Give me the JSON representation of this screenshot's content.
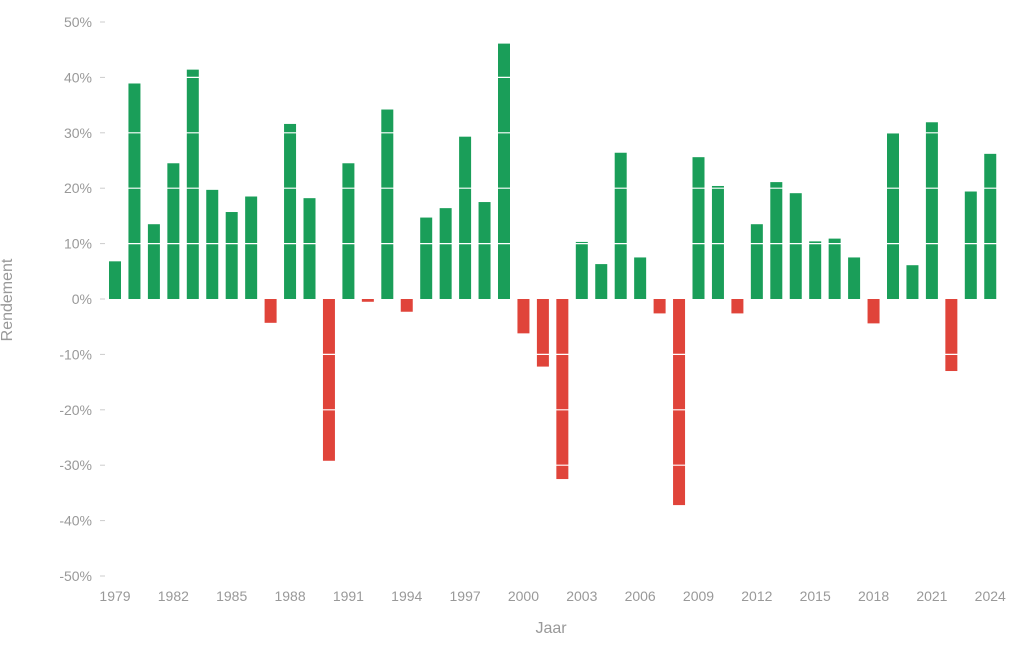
{
  "chart_data": {
    "type": "bar",
    "title": "",
    "xlabel": "Jaar",
    "ylabel": "Rendement",
    "ylim": [
      -50,
      50
    ],
    "yticks": [
      "50%",
      "40%",
      "30%",
      "20%",
      "10%",
      "0%",
      "-10%",
      "-20%",
      "-30%",
      "-40%",
      "-50%"
    ],
    "ytick_values": [
      50,
      40,
      30,
      20,
      10,
      0,
      -10,
      -20,
      -30,
      -40,
      -50
    ],
    "xtick_labels": [
      "1979",
      "1982",
      "1985",
      "1988",
      "1991",
      "1994",
      "1997",
      "2000",
      "2003",
      "2006",
      "2009",
      "2012",
      "2015",
      "2018",
      "2021",
      "2024"
    ],
    "grid": "horizontal",
    "colors": {
      "positive": "#1a9e59",
      "negative": "#e0443a",
      "gridline": "#ffffff",
      "text": "#999999"
    },
    "categories": [
      "1979",
      "1980",
      "1981",
      "1982",
      "1983",
      "1984",
      "1985",
      "1986",
      "1987",
      "1988",
      "1989",
      "1990",
      "1991",
      "1992",
      "1993",
      "1994",
      "1995",
      "1996",
      "1997",
      "1998",
      "1999",
      "2000",
      "2001",
      "2002",
      "2003",
      "2004",
      "2005",
      "2006",
      "2007",
      "2008",
      "2009",
      "2010",
      "2011",
      "2012",
      "2013",
      "2014",
      "2015",
      "2016",
      "2017",
      "2018",
      "2019",
      "2020",
      "2021",
      "2022",
      "2023",
      "2024"
    ],
    "values": [
      6.8,
      38.9,
      13.5,
      24.5,
      41.4,
      19.7,
      15.7,
      18.5,
      -4.3,
      31.6,
      18.2,
      -29.2,
      24.5,
      -0.5,
      34.2,
      -2.3,
      14.7,
      16.4,
      29.3,
      17.5,
      46.1,
      -6.2,
      -12.2,
      -32.5,
      10.3,
      6.3,
      26.4,
      7.5,
      -2.6,
      -37.2,
      25.6,
      20.4,
      -2.6,
      13.5,
      21.1,
      19.1,
      10.4,
      10.9,
      7.5,
      -4.4,
      29.9,
      6.1,
      31.9,
      -13.0,
      19.4,
      26.2
    ]
  }
}
